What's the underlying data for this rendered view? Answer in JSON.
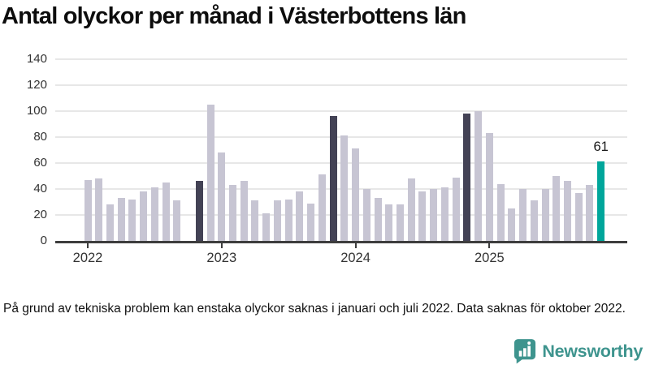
{
  "title": "Antal olyckor per månad i Västerbottens län",
  "footnote": "På grund av tekniska problem kan enstaka olyckor saknas i januari och juli 2022. Data saknas för oktober 2022.",
  "branding": {
    "wordmark": "Newsworthy",
    "icon": "speech-bubble-bar-chart-icon",
    "color": "#3e948e"
  },
  "colors": {
    "bar_default": "#c7c5d3",
    "bar_reference": "#434255",
    "bar_current": "#00a69b",
    "axis": "#3d3d3d",
    "gridline": "#e7e7e7",
    "annotation_text": "#1a1a1a",
    "axis_text": "#333333"
  },
  "chart_data": {
    "type": "bar",
    "title": "Antal olyckor per månad i Västerbottens län",
    "xlabel": "",
    "ylabel": "",
    "ylim": [
      0,
      140
    ],
    "yticks": [
      0,
      20,
      40,
      60,
      80,
      100,
      120,
      140
    ],
    "grid": "horizontal",
    "legend": "none",
    "x": [
      "2022-01",
      "2022-02",
      "2022-03",
      "2022-04",
      "2022-05",
      "2022-06",
      "2022-07",
      "2022-08",
      "2022-09",
      "2022-10",
      "2022-11",
      "2022-12",
      "2023-01",
      "2023-02",
      "2023-03",
      "2023-04",
      "2023-05",
      "2023-06",
      "2023-07",
      "2023-08",
      "2023-09",
      "2023-10",
      "2023-11",
      "2023-12",
      "2024-01",
      "2024-02",
      "2024-03",
      "2024-04",
      "2024-05",
      "2024-06",
      "2024-07",
      "2024-08",
      "2024-09",
      "2024-10",
      "2024-11",
      "2024-12",
      "2025-01",
      "2025-02",
      "2025-03",
      "2025-04",
      "2025-05",
      "2025-06",
      "2025-07",
      "2025-08",
      "2025-09",
      "2025-10",
      "2025-11"
    ],
    "values": [
      47,
      48,
      28,
      33,
      32,
      38,
      41,
      45,
      31,
      null,
      46,
      105,
      68,
      43,
      46,
      31,
      21,
      31,
      32,
      38,
      29,
      51,
      96,
      81,
      71,
      40,
      33,
      28,
      28,
      48,
      38,
      40,
      41,
      49,
      98,
      100,
      83,
      44,
      25,
      40,
      31,
      40,
      50,
      46,
      37,
      43,
      61
    ],
    "missing_months": [
      "2022-10"
    ],
    "highlight": {
      "reference_months": [
        "2022-11",
        "2023-11",
        "2024-11"
      ],
      "current_month": "2025-11"
    },
    "annotation": {
      "month": "2025-11",
      "label": "61"
    },
    "year_tick_labels": [
      "2022",
      "2023",
      "2024",
      "2025"
    ],
    "year_tick_positions": [
      0,
      12,
      24,
      36
    ]
  }
}
